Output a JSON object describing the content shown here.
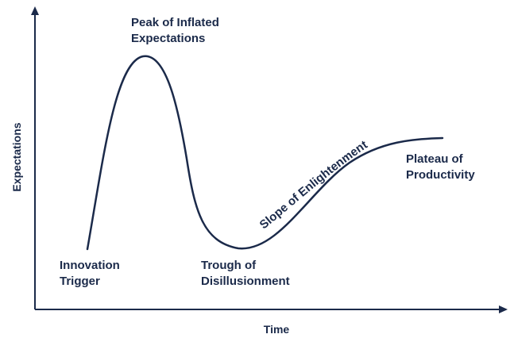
{
  "colors": {
    "ink": "#1b2a4a",
    "background": "#ffffff"
  },
  "axes": {
    "x_label": "Time",
    "y_label": "Expectations"
  },
  "phases": {
    "innovation_trigger": {
      "line1": "Innovation",
      "line2": "Trigger"
    },
    "peak": {
      "line1": "Peak of Inflated",
      "line2": "Expectations"
    },
    "trough": {
      "line1": "Trough of",
      "line2": "Disillusionment"
    },
    "slope": {
      "line1": "Slope of Enlightenment"
    },
    "plateau": {
      "line1": "Plateau of",
      "line2": "Productivity"
    }
  }
}
